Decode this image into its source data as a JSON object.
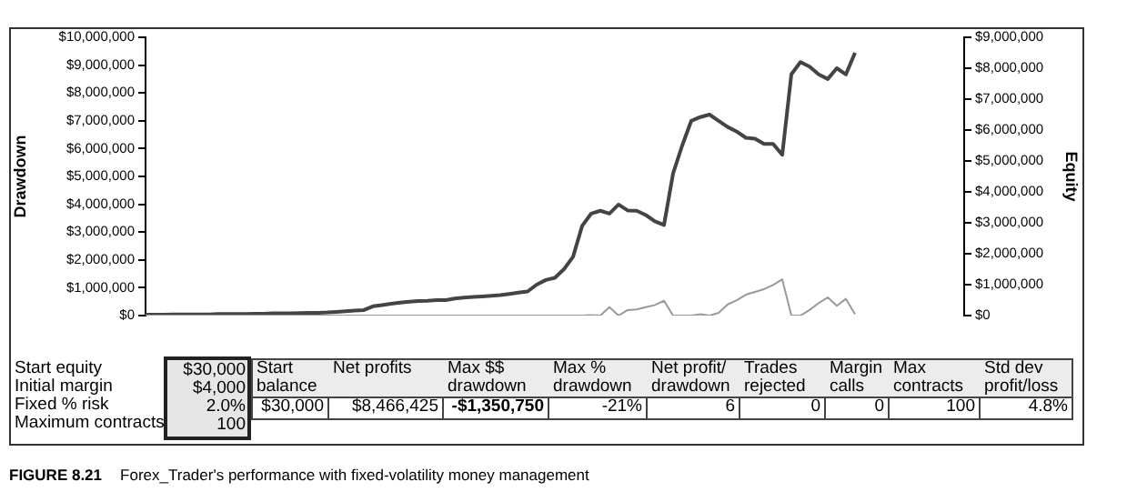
{
  "chart_data": {
    "type": "line",
    "categories": [
      null,
      null,
      null,
      null,
      null,
      null,
      null,
      null,
      null,
      null,
      null,
      null,
      null,
      null,
      null,
      null,
      null,
      null,
      null,
      null,
      null,
      null,
      null,
      null,
      null,
      null,
      null,
      null,
      null,
      null,
      null,
      null,
      null,
      null,
      null,
      null,
      null,
      null,
      null,
      null,
      null,
      null,
      null,
      null,
      null,
      null,
      null,
      null,
      null,
      null,
      null,
      null,
      null,
      null,
      null,
      null,
      null,
      null,
      null,
      null,
      null,
      null,
      null,
      null,
      null,
      null,
      null,
      null,
      null,
      null,
      null,
      null,
      null,
      null,
      null,
      null,
      null,
      null,
      null,
      null,
      null,
      null,
      null,
      null,
      null,
      null,
      null,
      null,
      null,
      null,
      null
    ],
    "series": [
      {
        "color": "#999999",
        "values": [
          0,
          0,
          0,
          0,
          0,
          0,
          0,
          0,
          0,
          0,
          0,
          0,
          0,
          0,
          0,
          0,
          0,
          0,
          0,
          0,
          0,
          0,
          0,
          0,
          0,
          0,
          0,
          0,
          0,
          0,
          0,
          0,
          0,
          0,
          0,
          0,
          0,
          0,
          0,
          0,
          0,
          0,
          0,
          0,
          0,
          0,
          0,
          0,
          0,
          20000,
          0,
          300000,
          0,
          200000,
          220000,
          300000,
          380000,
          530000,
          0,
          0,
          0,
          50000,
          0,
          100000,
          400000,
          550000,
          750000,
          850000,
          950000,
          1100000,
          1300000,
          0,
          0,
          200000,
          450000,
          650000,
          350000,
          600000,
          50000,
          null,
          null,
          null,
          null,
          null,
          null,
          null,
          null,
          null,
          null,
          null,
          null
        ]
      },
      {
        "color": "#444444",
        "axis": "y2",
        "values": [
          30000,
          30000,
          30000,
          40000,
          40000,
          40000,
          40000,
          40000,
          50000,
          50000,
          50000,
          50000,
          60000,
          60000,
          70000,
          70000,
          70000,
          80000,
          90000,
          90000,
          100000,
          120000,
          140000,
          160000,
          180000,
          300000,
          340000,
          380000,
          420000,
          450000,
          470000,
          480000,
          500000,
          500000,
          550000,
          580000,
          600000,
          620000,
          640000,
          660000,
          700000,
          740000,
          780000,
          1000000,
          1150000,
          1220000,
          1500000,
          1900000,
          2900000,
          3300000,
          3390000,
          3300000,
          3590000,
          3400000,
          3390000,
          3250000,
          3050000,
          2930000,
          4600000,
          5500000,
          6300000,
          6420000,
          6500000,
          6300000,
          6100000,
          5950000,
          5750000,
          5720000,
          5550000,
          5550000,
          5200000,
          7800000,
          8200000,
          8050000,
          7800000,
          7650000,
          8000000,
          7800000,
          8500000,
          null,
          null,
          null,
          null,
          null,
          null,
          null,
          null,
          null,
          null,
          null,
          null
        ]
      }
    ],
    "ylabel": "Drawdown",
    "y2label": "Equity",
    "ylim": [
      0,
      10000000
    ],
    "yticks": [
      {
        "value": 0,
        "label": "$0"
      },
      {
        "value": 1000000,
        "label": "$1,000,000"
      },
      {
        "value": 2000000,
        "label": "$2,000,000"
      },
      {
        "value": 3000000,
        "label": "$3,000,000"
      },
      {
        "value": 4000000,
        "label": "$4,000,000"
      },
      {
        "value": 5000000,
        "label": "$5,000,000"
      },
      {
        "value": 6000000,
        "label": "$6,000,000"
      },
      {
        "value": 7000000,
        "label": "$7,000,000"
      },
      {
        "value": 8000000,
        "label": "$8,000,000"
      },
      {
        "value": 9000000,
        "label": "$9,000,000"
      },
      {
        "value": 10000000,
        "label": "$10,000,000"
      }
    ],
    "y2lim": [
      0,
      9000000
    ],
    "y2ticks": [
      {
        "value": 0,
        "label": "$0"
      },
      {
        "value": 1000000,
        "label": "$1,000,000"
      },
      {
        "value": 2000000,
        "label": "$2,000,000"
      },
      {
        "value": 3000000,
        "label": "$3,000,000"
      },
      {
        "value": 4000000,
        "label": "$4,000,000"
      },
      {
        "value": 5000000,
        "label": "$5,000,000"
      },
      {
        "value": 6000000,
        "label": "$6,000,000"
      },
      {
        "value": 7000000,
        "label": "$7,000,000"
      },
      {
        "value": 8000000,
        "label": "$8,000,000"
      },
      {
        "value": 9000000,
        "label": "$9,000,000"
      }
    ],
    "tick_labels": "y",
    "marker": "none",
    "line_style": "solid",
    "legend": false,
    "annotations": [
      "Start equity",
      "$30,000",
      "Initial margin",
      "$4,000",
      "Fixed % risk",
      "2.0%",
      "Maximum contracts",
      "100",
      "Start balance",
      "Net profits",
      "Max $$ drawdown",
      "Max % drawdown",
      "Net profit/ drawdown",
      "Trades rejected",
      "Margin calls",
      "Max contracts",
      "Std dev profit/loss",
      "$30,000",
      "$8,466,425",
      "-$1,350,750",
      "-21%",
      "6",
      "0",
      "0",
      "100",
      "4.8%",
      "FIGURE 8.21 Forex_Trader's performance with fixed-volatility money management"
    ]
  }
}
